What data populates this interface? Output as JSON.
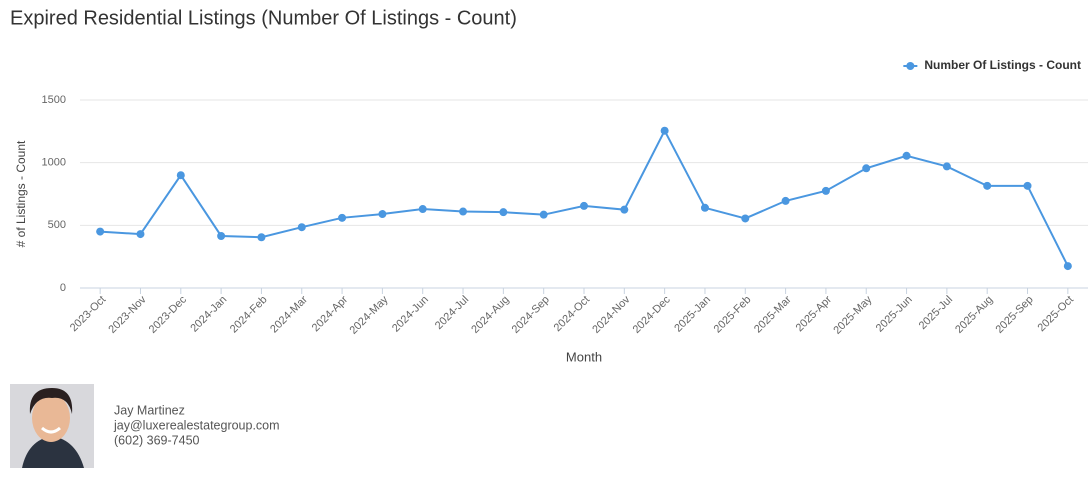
{
  "chart_data": {
    "type": "line",
    "title": "Expired Residential Listings (Number Of Listings - Count)",
    "x_label": "Month",
    "y_label": "# of Listings - Count",
    "categories": [
      "2023-Oct",
      "2023-Nov",
      "2023-Dec",
      "2024-Jan",
      "2024-Feb",
      "2024-Mar",
      "2024-Apr",
      "2024-May",
      "2024-Jun",
      "2024-Jul",
      "2024-Aug",
      "2024-Sep",
      "2024-Oct",
      "2024-Nov",
      "2024-Dec",
      "2025-Jan",
      "2025-Feb",
      "2025-Mar",
      "2025-Apr",
      "2025-May",
      "2025-Jun",
      "2025-Jul",
      "2025-Aug",
      "2025-Sep",
      "2025-Oct"
    ],
    "series": [
      {
        "name": "Number Of Listings - Count",
        "color": "#4a97e0",
        "values": [
          450,
          430,
          900,
          415,
          405,
          485,
          560,
          590,
          630,
          610,
          605,
          585,
          655,
          625,
          1255,
          640,
          555,
          695,
          775,
          955,
          1055,
          970,
          815,
          815,
          175
        ]
      }
    ],
    "ylim": [
      0,
      1500
    ],
    "yticks": [
      0,
      500,
      1000,
      1500
    ],
    "grid": true,
    "legend": "top-right"
  },
  "agent": {
    "name": "Jay Martinez",
    "email": "jay@luxerealestategroup.com",
    "phone": "(602) 369-7450"
  }
}
